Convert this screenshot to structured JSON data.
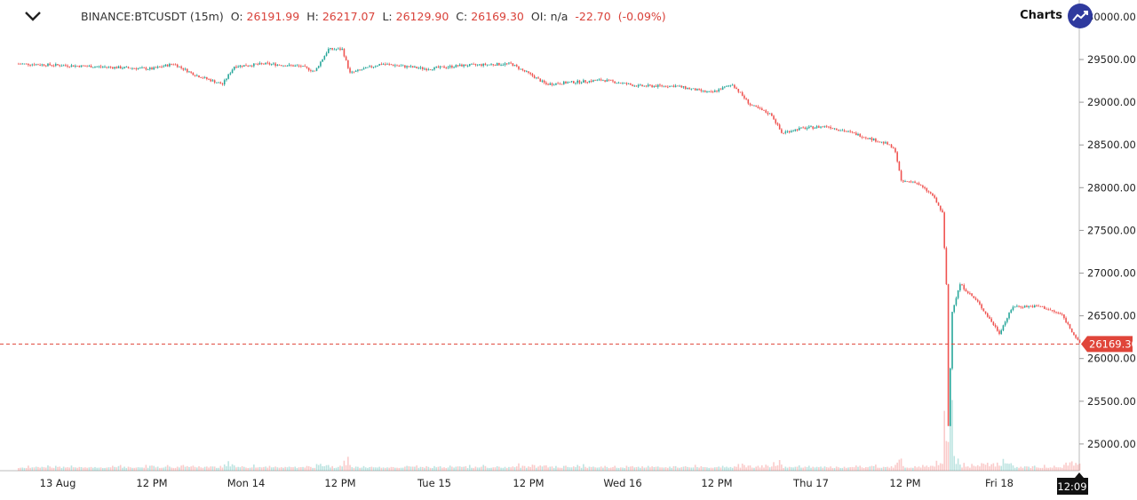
{
  "header": {
    "symbol": "BINANCE:BTCUSDT (15m)",
    "o_label": "O:",
    "o_value": "26191.99",
    "h_label": "H:",
    "h_value": "26217.07",
    "l_label": "L:",
    "l_value": "26129.90",
    "c_label": "C:",
    "c_value": "26169.30",
    "oi_label": "OI:",
    "oi_value": "n/a",
    "change": "-22.70",
    "change_pct": "(-0.09%)",
    "collapse_icon": "chevron-down-icon"
  },
  "badge": {
    "icon": "trend-up-icon",
    "label": "Charts"
  },
  "colors": {
    "up": "#26a69a",
    "down": "#ef5350",
    "last_price": "#e0453a",
    "badge": "#2f3a9e",
    "legend_values": "#d9423a"
  },
  "time_badge": "12:09",
  "chart_data": {
    "type": "candlestick",
    "interval": "15m",
    "last_price": 26169.3,
    "last_price_label": "26169.30",
    "y_ticks": [
      "25000.00",
      "25500.00",
      "26000.00",
      "26500.00",
      "27000.00",
      "27500.00",
      "28000.00",
      "28500.00",
      "29000.00",
      "29500.00",
      "30000.00"
    ],
    "ylim": [
      24700,
      30000
    ],
    "x_ticks": [
      {
        "label": "13 Aug",
        "time": "08-13 00:00"
      },
      {
        "label": "12 PM",
        "time": "08-13 12:00"
      },
      {
        "label": "Mon 14",
        "time": "08-14 00:00"
      },
      {
        "label": "12 PM",
        "time": "08-14 12:00"
      },
      {
        "label": "Tue 15",
        "time": "08-15 00:00"
      },
      {
        "label": "12 PM",
        "time": "08-15 12:00"
      },
      {
        "label": "Wed 16",
        "time": "08-16 00:00"
      },
      {
        "label": "12 PM",
        "time": "08-16 12:00"
      },
      {
        "label": "Thu 17",
        "time": "08-17 00:00"
      },
      {
        "label": "12 PM",
        "time": "08-17 12:00"
      },
      {
        "label": "Fri 18",
        "time": "08-18 00:00"
      }
    ],
    "price_path": [
      [
        "08-12 19:00",
        29450
      ],
      [
        "08-13 04:00",
        29420
      ],
      [
        "08-13 12:00",
        29390
      ],
      [
        "08-13 14:45",
        29450
      ],
      [
        "08-13 17:30",
        29320
      ],
      [
        "08-13 21:00",
        29210
      ],
      [
        "08-13 22:30",
        29420
      ],
      [
        "08-14 02:30",
        29450
      ],
      [
        "08-14 07:00",
        29420
      ],
      [
        "08-14 08:45",
        29360
      ],
      [
        "08-14 10:30",
        29620
      ],
      [
        "08-14 12:15",
        29620
      ],
      [
        "08-14 13:15",
        29340
      ],
      [
        "08-14 17:15",
        29450
      ],
      [
        "08-14 23:00",
        29390
      ],
      [
        "08-15 03:30",
        29430
      ],
      [
        "08-15 09:45",
        29450
      ],
      [
        "08-15 12:30",
        29310
      ],
      [
        "08-15 14:15",
        29210
      ],
      [
        "08-15 17:00",
        29230
      ],
      [
        "08-15 21:30",
        29260
      ],
      [
        "08-16 02:00",
        29190
      ],
      [
        "08-16 06:45",
        29190
      ],
      [
        "08-16 11:15",
        29110
      ],
      [
        "08-16 14:00",
        29210
      ],
      [
        "08-16 16:15",
        28970
      ],
      [
        "08-16 19:00",
        28850
      ],
      [
        "08-16 20:15",
        28640
      ],
      [
        "08-16 22:30",
        28690
      ],
      [
        "08-17 02:00",
        28720
      ],
      [
        "08-17 05:15",
        28640
      ],
      [
        "08-17 09:45",
        28510
      ],
      [
        "08-17 10:45",
        28430
      ],
      [
        "08-17 11:30",
        28070
      ],
      [
        "08-17 13:15",
        28070
      ],
      [
        "08-17 15:30",
        27910
      ],
      [
        "08-17 16:45",
        27700
      ],
      [
        "08-17 17:15",
        26870
      ],
      [
        "08-17 17:30",
        25210
      ],
      [
        "08-17 18:00",
        26560
      ],
      [
        "08-17 19:00",
        26870
      ],
      [
        "08-17 21:15",
        26660
      ],
      [
        "08-18 00:00",
        26300
      ],
      [
        "08-18 01:45",
        26610
      ],
      [
        "08-18 05:15",
        26610
      ],
      [
        "08-18 08:00",
        26510
      ],
      [
        "08-18 10:15",
        26170
      ]
    ]
  }
}
